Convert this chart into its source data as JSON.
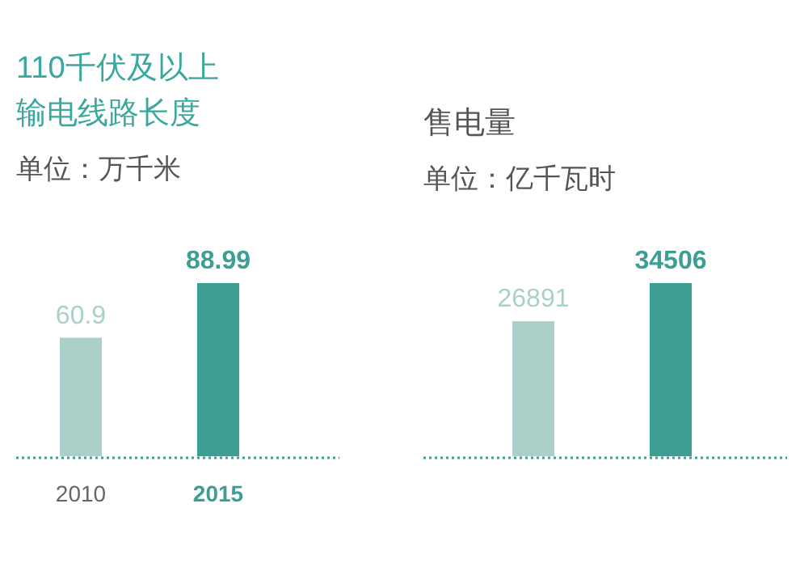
{
  "chart_data": [
    {
      "type": "bar",
      "title": "110千伏及以上输电线路长度",
      "subtitle": "单位：万千米",
      "categories": [
        "2010",
        "2015"
      ],
      "values": [
        60.9,
        88.99
      ],
      "colors": [
        "#a9d0c9",
        "#3d9e94"
      ],
      "data_labels": true
    },
    {
      "type": "bar",
      "title": "售电量",
      "subtitle": "单位：亿千瓦时",
      "categories": [
        null,
        null
      ],
      "values": [
        26891,
        34506
      ],
      "colors": [
        "#a9d0c9",
        "#3d9e94"
      ],
      "data_labels": true
    }
  ]
}
